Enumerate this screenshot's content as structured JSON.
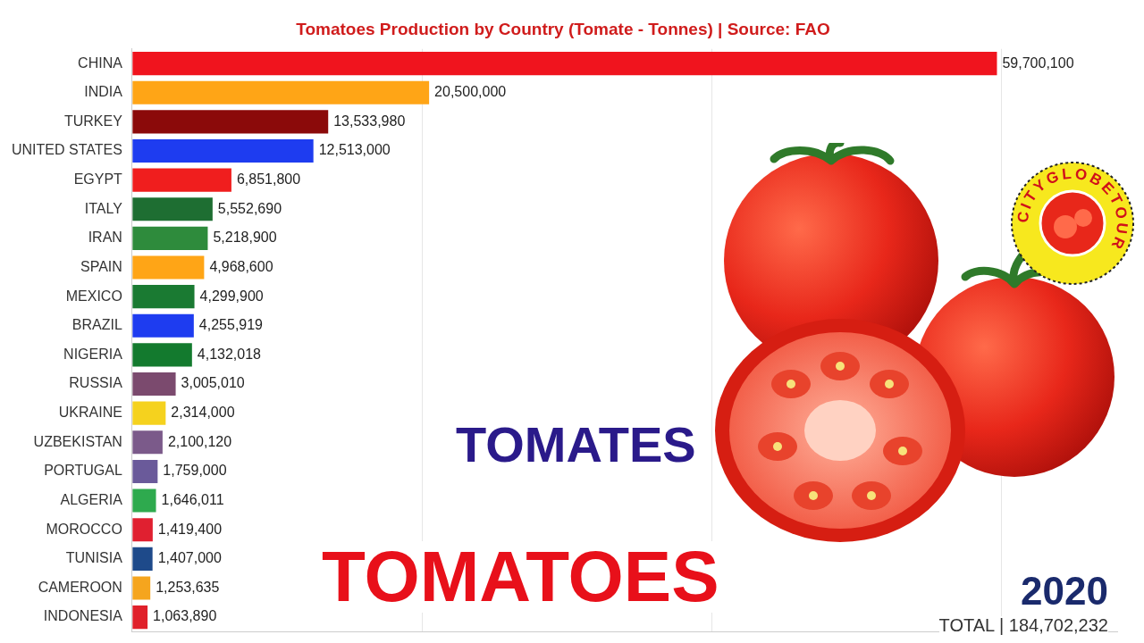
{
  "chart_data": {
    "type": "bar",
    "title": "Tomatoes Production by Country (Tomate - Tonnes) | Source: FAO",
    "orientation": "horizontal",
    "categories": [
      "CHINA",
      "INDIA",
      "TURKEY",
      "UNITED STATES",
      "EGYPT",
      "ITALY",
      "IRAN",
      "SPAIN",
      "MEXICO",
      "BRAZIL",
      "NIGERIA",
      "RUSSIA",
      "UKRAINE",
      "UZBEKISTAN",
      "PORTUGAL",
      "ALGERIA",
      "MOROCCO",
      "TUNISIA",
      "CAMEROON",
      "INDONESIA"
    ],
    "values": [
      59700100,
      20500000,
      13533980,
      12513000,
      6851800,
      5552690,
      5218900,
      4968600,
      4299900,
      4255919,
      4132018,
      3005010,
      2314000,
      2100120,
      1759000,
      1646011,
      1419400,
      1407000,
      1253635,
      1063890
    ],
    "value_labels": [
      "59,700,100",
      "20,500,000",
      "13,533,980",
      "12,513,000",
      "6,851,800",
      "5,552,690",
      "5,218,900",
      "4,968,600",
      "4,299,900",
      "4,255,919",
      "4,132,018",
      "3,005,010",
      "2,314,000",
      "2,100,120",
      "1,759,000",
      "1,646,011",
      "1,419,400",
      "1,407,000",
      "1,253,635",
      "1,063,890"
    ],
    "colors": [
      "#f0141e",
      "#ffa516",
      "#8b0a0a",
      "#1e3cf0",
      "#f01e1e",
      "#1e6e32",
      "#2e8b3c",
      "#ffa516",
      "#1a7a32",
      "#1e3cf0",
      "#137a2e",
      "#7b4a6e",
      "#f5d21e",
      "#7b5a8a",
      "#6a5a9a",
      "#2eaa4e",
      "#e02030",
      "#1e4a8a",
      "#f5a51e",
      "#e0202a"
    ],
    "xlim": [
      0,
      68000000
    ],
    "xticks": [
      0,
      20000000,
      40000000,
      60000000
    ],
    "grid": true,
    "tick_labels": "y",
    "data_labels": true,
    "annotations": [
      "TOMATES",
      "TOMATOES",
      "2020",
      "TOTAL | 184,702,232"
    ]
  },
  "logo": {
    "text": "CITYGLOBETOUR"
  }
}
